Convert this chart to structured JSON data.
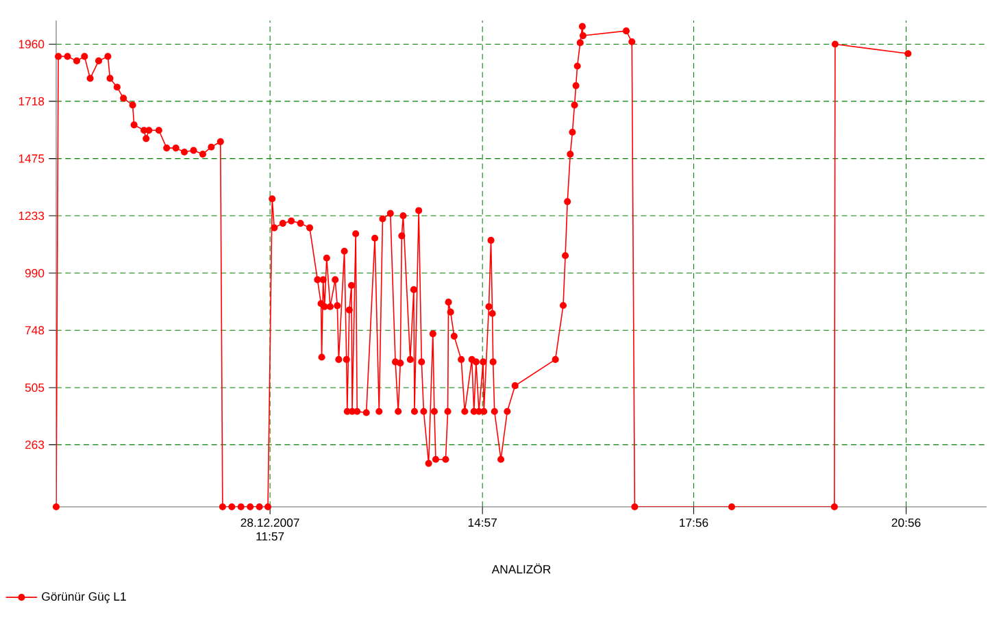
{
  "chart_data": {
    "type": "line",
    "xlabel": "ANALIZÖR",
    "x": [
      8.93,
      8.96,
      9.09,
      9.22,
      9.33,
      9.41,
      9.53,
      9.66,
      9.69,
      9.79,
      9.88,
      10.01,
      10.03,
      10.17,
      10.2,
      10.24,
      10.38,
      10.49,
      10.62,
      10.74,
      10.87,
      11.0,
      11.12,
      11.25,
      11.28,
      11.41,
      11.54,
      11.67,
      11.8,
      11.92,
      11.98,
      12.01,
      12.13,
      12.25,
      12.38,
      12.51,
      12.62,
      12.67,
      12.68,
      12.7,
      12.72,
      12.75,
      12.8,
      12.87,
      12.9,
      12.92,
      13.0,
      13.03,
      13.04,
      13.07,
      13.1,
      13.11,
      13.16,
      13.18,
      13.31,
      13.43,
      13.49,
      13.54,
      13.65,
      13.72,
      13.76,
      13.79,
      13.81,
      13.83,
      13.93,
      13.98,
      13.99,
      14.05,
      14.09,
      14.12,
      14.19,
      14.25,
      14.27,
      14.29,
      14.43,
      14.46,
      14.47,
      14.5,
      14.55,
      14.65,
      14.7,
      14.8,
      14.83,
      14.86,
      14.9,
      14.96,
      14.97,
      15.04,
      15.07,
      15.09,
      15.1,
      15.12,
      15.21,
      15.3,
      15.41,
      15.98,
      16.09,
      16.12,
      16.15,
      16.19,
      16.22,
      16.25,
      16.27,
      16.29,
      16.33,
      16.36,
      16.37,
      16.98,
      17.06,
      17.1,
      18.47,
      19.92,
      19.93,
      20.96
    ],
    "series": [
      {
        "name": "Görünür Güç L1",
        "color": "#ff0000",
        "values": [
          0,
          1908,
          1908,
          1889,
          1908,
          1815,
          1889,
          1908,
          1815,
          1778,
          1731,
          1702,
          1618,
          1595,
          1560,
          1595,
          1595,
          1520,
          1520,
          1503,
          1510,
          1494,
          1524,
          1547,
          0,
          0,
          0,
          0,
          0,
          0,
          1305,
          1182,
          1201,
          1211,
          1201,
          1182,
          962,
          861,
          634,
          962,
          848,
          1054,
          848,
          962,
          852,
          624,
          1083,
          624,
          404,
          834,
          938,
          404,
          1157,
          404,
          399,
          1138,
          404,
          1220,
          1243,
          614,
          404,
          609,
          1148,
          1233,
          624,
          920,
          404,
          1255,
          614,
          404,
          184,
          733,
          404,
          201,
          201,
          404,
          867,
          825,
          723,
          624,
          404,
          624,
          404,
          614,
          404,
          614,
          404,
          848,
          1129,
          819,
          614,
          404,
          201,
          404,
          513,
          624,
          853,
          1064,
          1293,
          1494,
          1587,
          1702,
          1784,
          1867,
          1966,
          2035,
          1996,
          2016,
          1970,
          0,
          0,
          0,
          1960,
          1920
        ]
      }
    ],
    "xlim": [
      8.93,
      22.07
    ],
    "ylim": [
      0,
      2060
    ],
    "xticks": [
      {
        "value": 11.95,
        "label": "28.12.2007 11:57"
      },
      {
        "value": 14.95,
        "label": "14:57"
      },
      {
        "value": 17.933,
        "label": "17:56"
      },
      {
        "value": 20.933,
        "label": "20:56"
      }
    ],
    "yticks": [
      263,
      505,
      748,
      990,
      1233,
      1475,
      1718,
      1960
    ],
    "grid": true,
    "legend": "bottom left",
    "marker": "circle",
    "line_style": "solid"
  }
}
